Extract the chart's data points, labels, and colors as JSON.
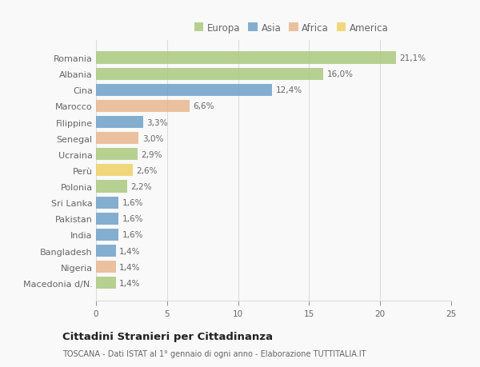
{
  "categories": [
    "Romania",
    "Albania",
    "Cina",
    "Marocco",
    "Filippine",
    "Senegal",
    "Ucraina",
    "Perù",
    "Polonia",
    "Sri Lanka",
    "Pakistan",
    "India",
    "Bangladesh",
    "Nigeria",
    "Macedonia d/N."
  ],
  "values": [
    21.1,
    16.0,
    12.4,
    6.6,
    3.3,
    3.0,
    2.9,
    2.6,
    2.2,
    1.6,
    1.6,
    1.6,
    1.4,
    1.4,
    1.4
  ],
  "labels": [
    "21,1%",
    "16,0%",
    "12,4%",
    "6,6%",
    "3,3%",
    "3,0%",
    "2,9%",
    "2,6%",
    "2,2%",
    "1,6%",
    "1,6%",
    "1,6%",
    "1,4%",
    "1,4%",
    "1,4%"
  ],
  "continents": [
    "Europa",
    "Europa",
    "Asia",
    "Africa",
    "Asia",
    "Africa",
    "Europa",
    "America",
    "Europa",
    "Asia",
    "Asia",
    "Asia",
    "Asia",
    "Africa",
    "Europa"
  ],
  "continent_colors": {
    "Europa": "#a8c87a",
    "Asia": "#6b9ec8",
    "Africa": "#e8b48a",
    "America": "#f0d060"
  },
  "legend_order": [
    "Europa",
    "Asia",
    "Africa",
    "America"
  ],
  "xlim": [
    0,
    25
  ],
  "xticks": [
    0,
    5,
    10,
    15,
    20,
    25
  ],
  "title": "Cittadini Stranieri per Cittadinanza",
  "subtitle": "TOSCANA - Dati ISTAT al 1° gennaio di ogni anno - Elaborazione TUTTITALIA.IT",
  "bg_color": "#f9f9f9",
  "grid_color": "#dddddd",
  "text_color": "#666666",
  "title_color": "#222222",
  "subtitle_color": "#666666",
  "bar_height": 0.75,
  "label_fontsize": 7.5,
  "ytick_fontsize": 8,
  "xtick_fontsize": 7.5,
  "legend_fontsize": 8.5,
  "title_fontsize": 9.5,
  "subtitle_fontsize": 7
}
